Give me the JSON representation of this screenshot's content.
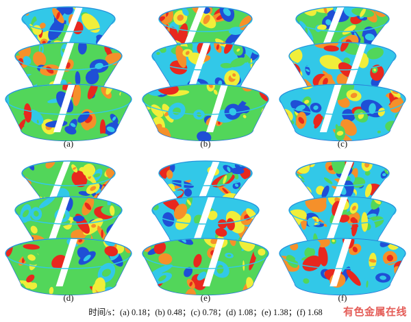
{
  "panels": [
    {
      "label": "(a)"
    },
    {
      "label": "(b)"
    },
    {
      "label": "(c)"
    },
    {
      "label": "(d)"
    },
    {
      "label": "(e)"
    },
    {
      "label": "(f)"
    }
  ],
  "caption": "时间/s：(a) 0.18；(b) 0.48；(c) 0.78；(d) 1.08；(e) 1.38；(f) 1.68",
  "watermark": "有色金属在线",
  "colors": {
    "blue": "#1f4fd6",
    "cyan": "#32c8e8",
    "green": "#52d65a",
    "yellow": "#f0ee3a",
    "orange": "#f5902a",
    "red": "#e8281e",
    "white": "#ffffff"
  }
}
